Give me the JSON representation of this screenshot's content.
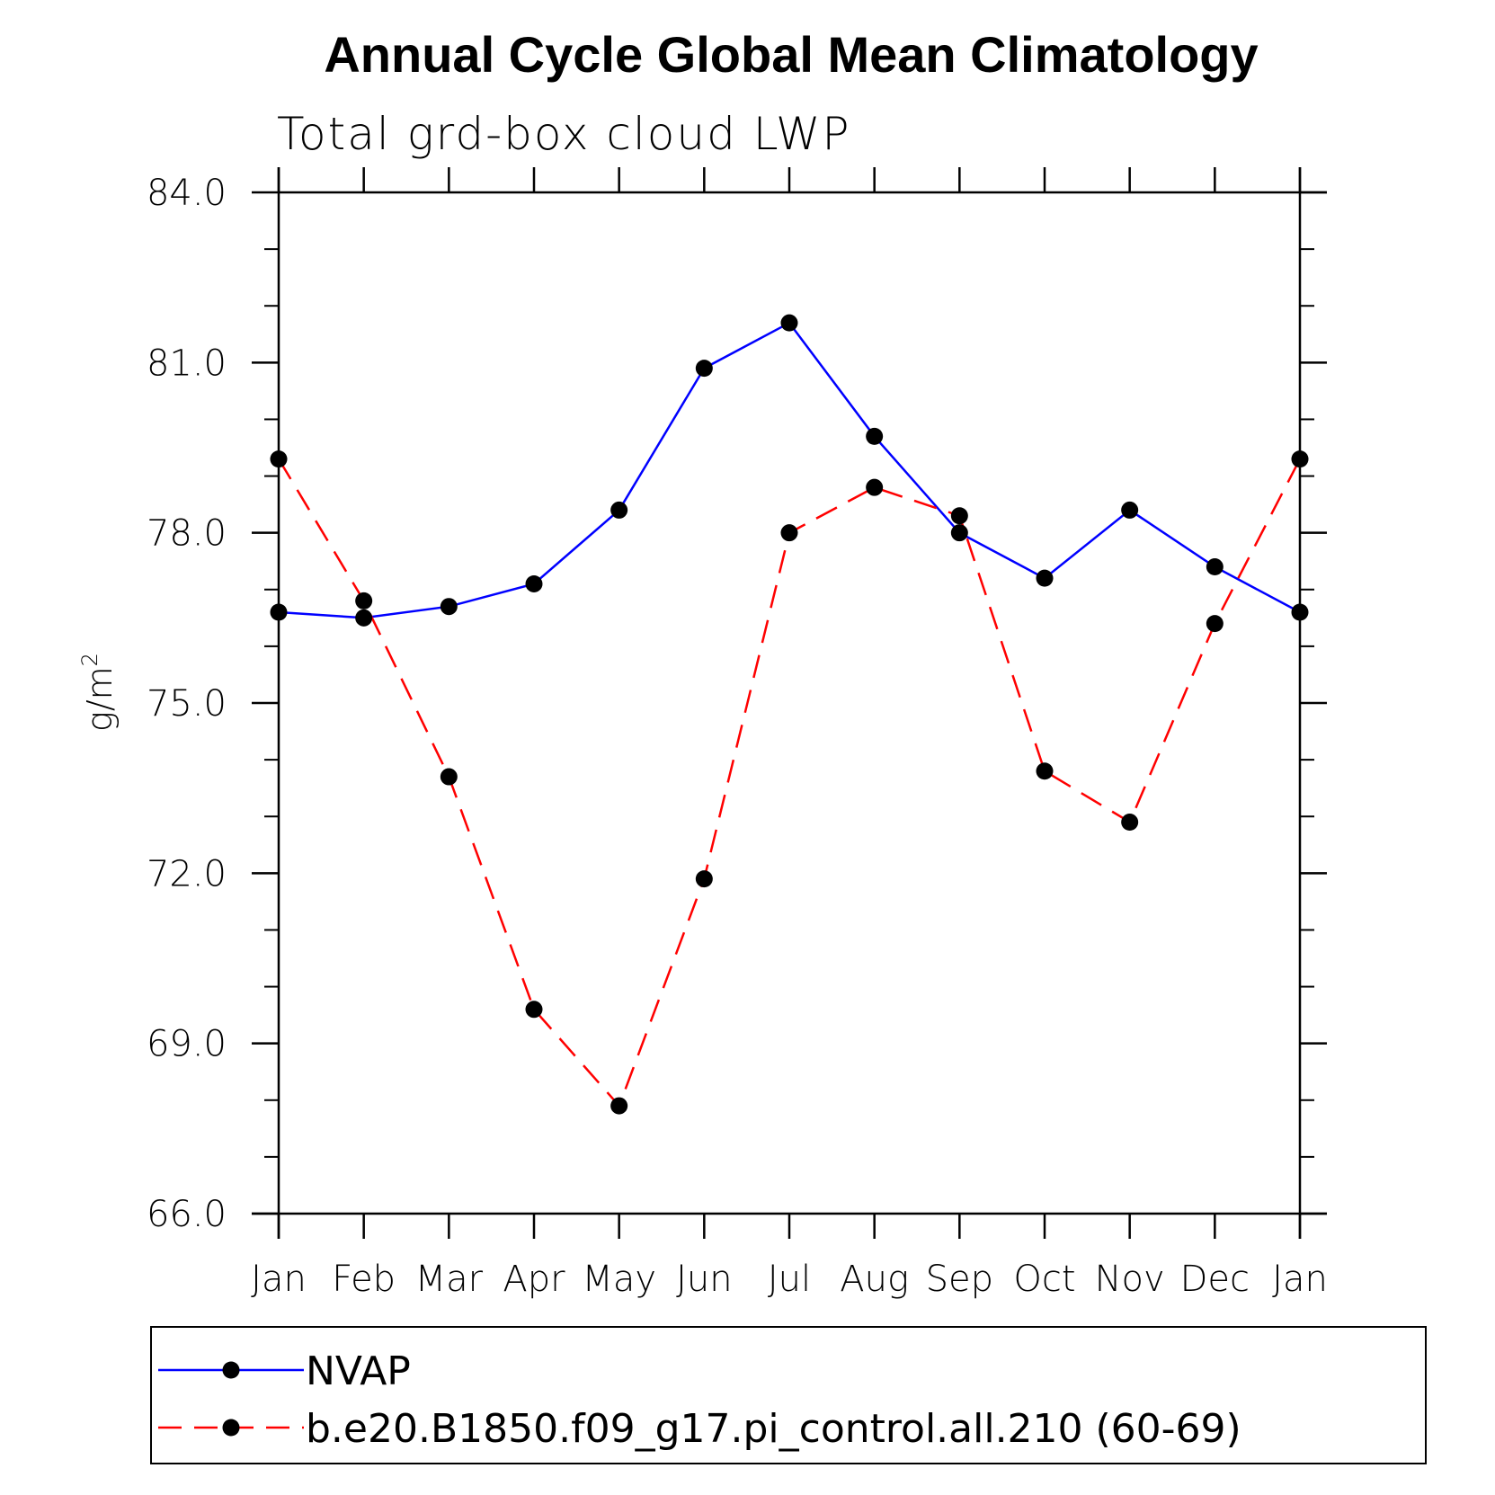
{
  "chart_data": {
    "type": "line",
    "title": "Annual Cycle Global Mean Climatology",
    "subtitle": "Total grd-box cloud LWP",
    "xlabel": "",
    "ylabel": "g/m",
    "ylabel_superscript": "2",
    "ylim": [
      66.0,
      84.0
    ],
    "yticks": [
      66.0,
      69.0,
      72.0,
      75.0,
      78.0,
      81.0,
      84.0
    ],
    "ytick_labels": [
      "66.0",
      "69.0",
      "72.0",
      "75.0",
      "78.0",
      "81.0",
      "84.0"
    ],
    "categories": [
      "Jan",
      "Feb",
      "Mar",
      "Apr",
      "May",
      "Jun",
      "Jul",
      "Aug",
      "Sep",
      "Oct",
      "Nov",
      "Dec",
      "Jan"
    ],
    "series": [
      {
        "name": "NVAP",
        "color": "#0000ff",
        "dash": "solid",
        "values": [
          76.6,
          76.5,
          76.7,
          77.1,
          78.4,
          80.9,
          81.7,
          79.7,
          78.0,
          77.2,
          78.4,
          77.4,
          76.6
        ]
      },
      {
        "name": "b.e20.B1850.f09_g17.pi_control.all.210 (60-69)",
        "color": "#ff0000",
        "dash": "dashed",
        "values": [
          79.3,
          76.8,
          73.7,
          69.6,
          67.9,
          71.9,
          78.0,
          78.8,
          78.3,
          73.8,
          72.9,
          76.4,
          79.3
        ]
      }
    ],
    "legend_position": "bottom",
    "marker_color": "#000000"
  }
}
